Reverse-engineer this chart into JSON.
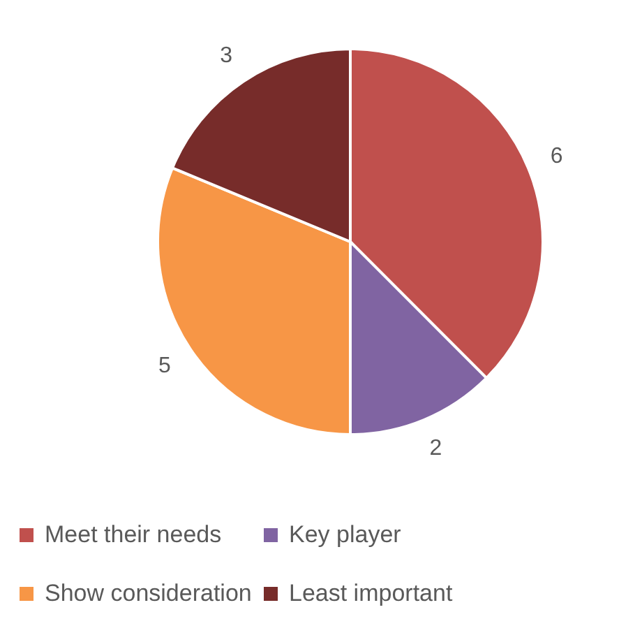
{
  "chart_data": {
    "type": "pie",
    "categories": [
      "Meet their needs",
      "Key player",
      "Show consideration",
      "Least important"
    ],
    "values": [
      6,
      2,
      5,
      3
    ],
    "colors": [
      "#c0504d",
      "#8064a2",
      "#f79646",
      "#772c2a"
    ],
    "data_labels": true,
    "legend": "bottom"
  }
}
